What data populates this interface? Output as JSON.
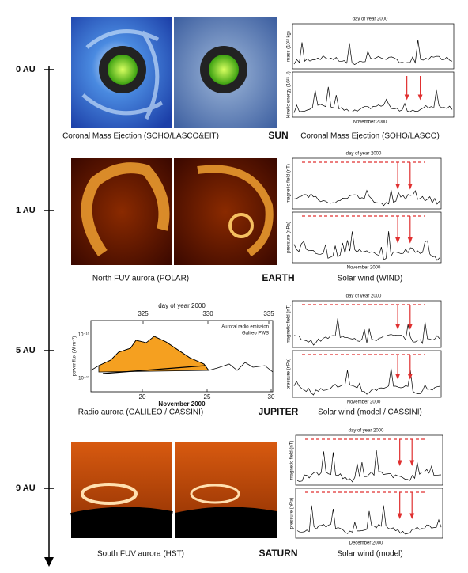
{
  "axis": {
    "labels": [
      "0 AU",
      "1 AU",
      "5 AU",
      "9 AU"
    ]
  },
  "rows": [
    {
      "body": "SUN",
      "left_caption": "Coronal Mass Ejection (SOHO/LASCO&EIT)",
      "right_caption": "Coronal Mass Ejection (SOHO/LASCO)",
      "plot": {
        "top_label": "day of year 2000",
        "panel_labels": [
          "mass (10¹² kg)",
          "kinetic energy (10²⁴ J)"
        ],
        "bottom_label": "November 2000"
      }
    },
    {
      "body": "EARTH",
      "left_caption": "North FUV aurora (POLAR)",
      "right_caption": "Solar wind (WIND)",
      "plot": {
        "top_label": "day of year 2000",
        "panel_labels": [
          "magnetic field (nT)",
          "pressure (nPa)"
        ],
        "bottom_label": "November 2000"
      }
    },
    {
      "body": "JUPITER",
      "left_caption": "Radio aurora (GALILEO / CASSINI)",
      "right_caption": "Solar wind (model / CASSINI)",
      "plot": {
        "top_label": "day of year 2000",
        "panel_labels": [
          "magnetic field (nT)",
          "pressure (nPa)"
        ],
        "bottom_label": "November 2000"
      },
      "radio_plot": {
        "top_label": "day of year 2000",
        "top_ticks": [
          "325",
          "330",
          "335"
        ],
        "bottom_ticks": [
          "20",
          "25",
          "30"
        ],
        "bottom_label": "November 2000",
        "y_label": "power flux (W m⁻²)",
        "y_ticks": [
          "10⁻¹⁰",
          "10⁻¹¹"
        ],
        "legend": [
          "Auroral radio emission",
          "Galileo PWS"
        ]
      }
    },
    {
      "body": "SATURN",
      "left_caption": "South FUV aurora (HST)",
      "right_caption": "Solar wind (model)",
      "plot": {
        "top_label": "day of year 2000",
        "panel_labels": [
          "magnetic field (nT)",
          "pressure (nPa)"
        ],
        "bottom_label": "December 2000"
      }
    }
  ]
}
